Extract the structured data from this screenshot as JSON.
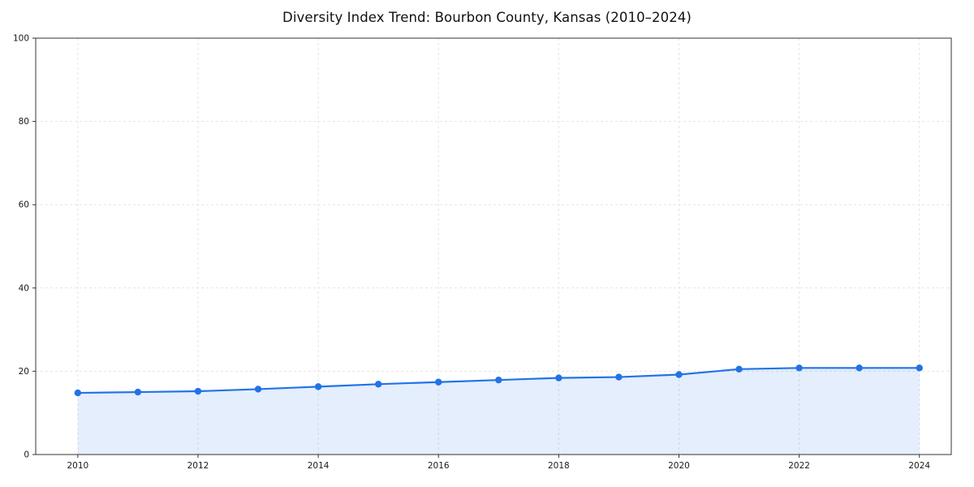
{
  "chart_data": {
    "type": "line",
    "title": "Diversity Index Trend: Bourbon County, Kansas (2010–2024)",
    "x": [
      2010,
      2011,
      2012,
      2013,
      2014,
      2015,
      2016,
      2017,
      2018,
      2019,
      2020,
      2021,
      2022,
      2023,
      2024
    ],
    "series": [
      {
        "name": "Diversity Index",
        "values": [
          14.8,
          15.0,
          15.2,
          15.7,
          16.3,
          16.9,
          17.4,
          17.9,
          18.4,
          18.6,
          19.2,
          20.5,
          20.8,
          20.8,
          20.8
        ]
      }
    ],
    "xlabel": "",
    "ylabel": "",
    "xlim": [
      2009.3,
      2024.53
    ],
    "ylim": [
      0,
      100
    ],
    "xticks": [
      2010,
      2012,
      2014,
      2016,
      2018,
      2020,
      2022,
      2024
    ],
    "yticks": [
      0,
      20,
      40,
      60,
      80,
      100
    ],
    "grid": true,
    "grid_style": "dashed",
    "legend": "none",
    "line_color": "#2273e6",
    "marker_color": "#2273e6",
    "fill_color": "#2273e6",
    "fill_opacity": 0.12,
    "axis_color": "#333333",
    "grid_color": "#e4e4e4",
    "text_color": "#1a1a1a",
    "background": "#ffffff"
  }
}
